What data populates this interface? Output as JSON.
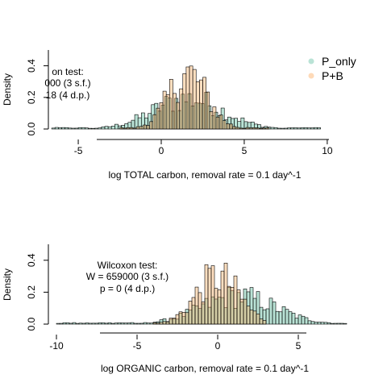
{
  "chart_data": [
    {
      "type": "histogram",
      "xlabel": "log TOTAL carbon, removal rate = 0.1 day^-1",
      "ylabel": "Density",
      "xlim": [
        -6.8,
        10.2
      ],
      "ylim": [
        0,
        0.5
      ],
      "xticks": [
        -5,
        0,
        5,
        10
      ],
      "yticks": [
        0.0,
        0.2,
        0.4
      ],
      "xtick_labels": [
        "-5",
        "0",
        "5",
        "10"
      ],
      "ytick_labels": [
        "0.0",
        "0.2",
        "0.4"
      ],
      "annotation": [
        "on test:",
        "000 (3 s.f.)",
        "18 (4 d.p.)"
      ],
      "legend": {
        "position": "top-right",
        "entries": [
          "P_only",
          "P+B"
        ]
      },
      "series": [
        {
          "name": "P_only",
          "color": "#66c2a5",
          "mean": 1.6,
          "sd": 2.1,
          "range": [
            -6.6,
            9.5
          ]
        },
        {
          "name": "P+B",
          "color": "#fdae61",
          "mean": 1.6,
          "sd": 1.15,
          "range": [
            -2.5,
            6.5
          ]
        }
      ]
    },
    {
      "type": "histogram",
      "xlabel": "log ORGANIC carbon, removal rate = 0.1 day^-1",
      "ylabel": "Density",
      "xlim": [
        -10.5,
        8.5
      ],
      "ylim": [
        0,
        0.5
      ],
      "xticks": [
        -10,
        -5,
        0,
        5
      ],
      "yticks": [
        0.0,
        0.2,
        0.4
      ],
      "xtick_labels": [
        "-10",
        "-5",
        "0",
        "5"
      ],
      "ytick_labels": [
        "0.0",
        "0.2",
        "0.4"
      ],
      "annotation": [
        "Wilcoxon test:",
        "W = 659000 (3 s.f.)",
        "p = 0 (4 d.p.)"
      ],
      "series": [
        {
          "name": "P_only",
          "color": "#66c2a5",
          "mean": 1.3,
          "sd": 2.3,
          "range": [
            -10,
            8
          ]
        },
        {
          "name": "P+B",
          "color": "#fdae61",
          "mean": 0.0,
          "sd": 1.35,
          "range": [
            -4,
            3
          ]
        }
      ]
    }
  ]
}
